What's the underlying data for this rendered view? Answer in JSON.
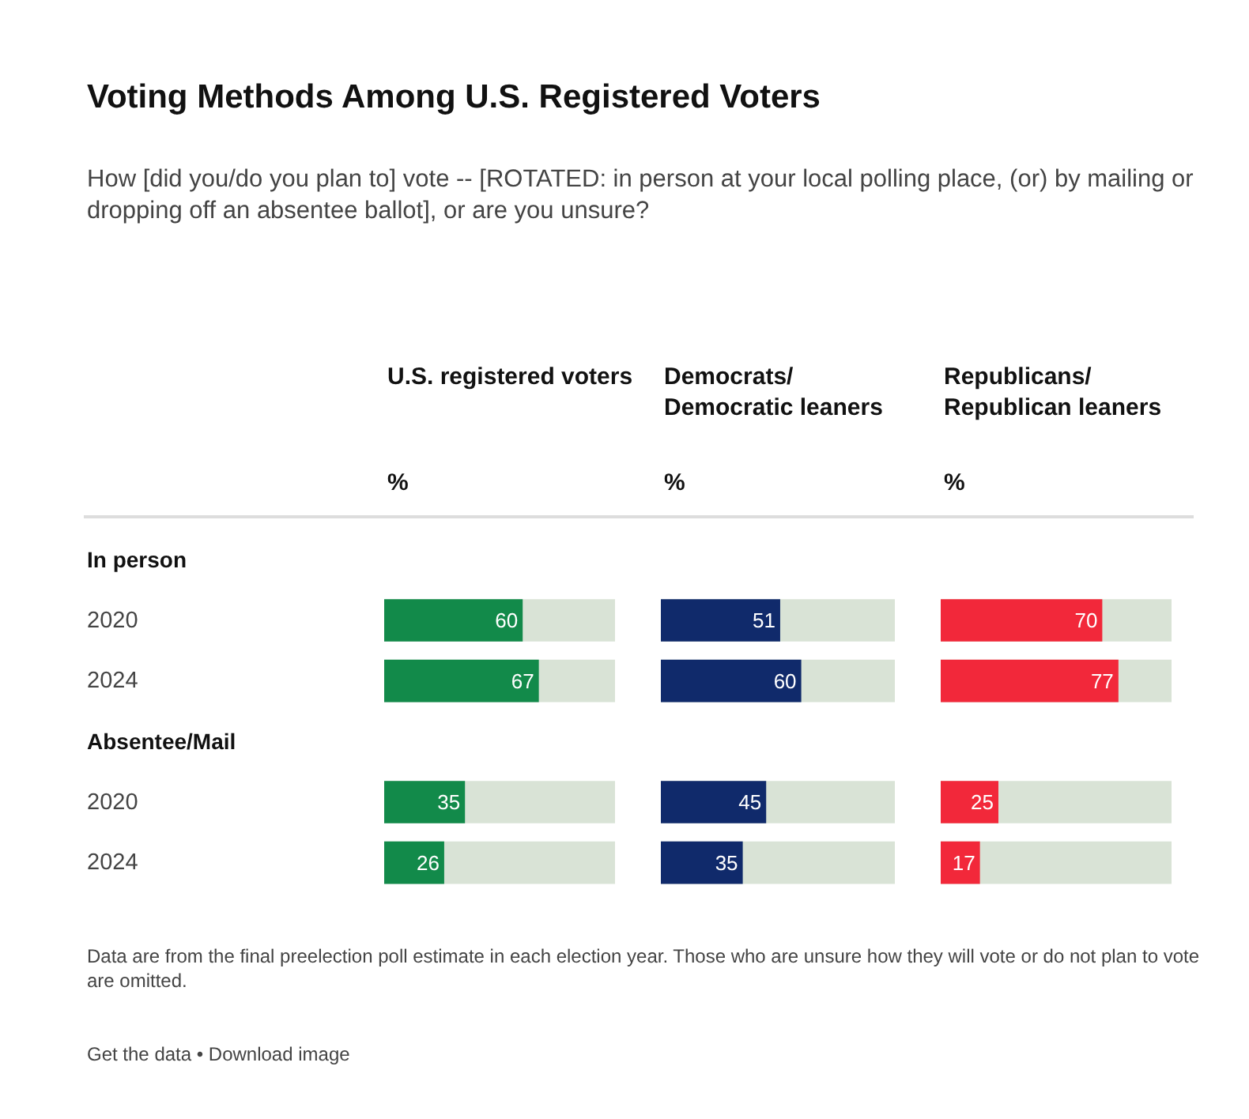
{
  "chart_data": [
    {
      "type": "other",
      "title": "Voting Methods Among U.S. Registered Voters",
      "subtitle": "How [did you/do you plan to] vote -- [ROTATED: in person at your local polling place, (or) by mailing or dropping off an absentee ballot], or are you unsure?",
      "annotations": [
        "Data are from the final preelection poll estimate in each election year. Those who are unsure how they will vote or do not plan to vote are omitted.",
        "Get the data • Download image"
      ]
    },
    {
      "type": "bar",
      "orientation": "horizontal",
      "title": "U.S. registered voters",
      "subtitle": "%",
      "categories": [
        "In person",
        "2020",
        "2024",
        "Absentee/Mail",
        "2020",
        "2024"
      ],
      "values": [
        null,
        60,
        67,
        null,
        35,
        26
      ],
      "color": "#128a4a",
      "xlim": [
        0,
        100
      ],
      "data_labels": true,
      "tick_labels": "y"
    },
    {
      "type": "bar",
      "orientation": "horizontal",
      "title": "Democrats/\nDemocratic leaners",
      "subtitle": "%",
      "categories": [
        null,
        null,
        null,
        null,
        null,
        null
      ],
      "values": [
        null,
        51,
        60,
        null,
        45,
        35
      ],
      "color": "#102a6b",
      "xlim": [
        0,
        100
      ],
      "data_labels": true,
      "tick_labels": false
    },
    {
      "type": "bar",
      "orientation": "horizontal",
      "title": "Republicans/\nRepublican leaners",
      "subtitle": "%",
      "categories": [
        null,
        null,
        null,
        null,
        null,
        null
      ],
      "values": [
        null,
        70,
        77,
        null,
        25,
        17
      ],
      "color": "#f2283a",
      "xlim": [
        0,
        100
      ],
      "data_labels": true,
      "tick_labels": false
    }
  ]
}
